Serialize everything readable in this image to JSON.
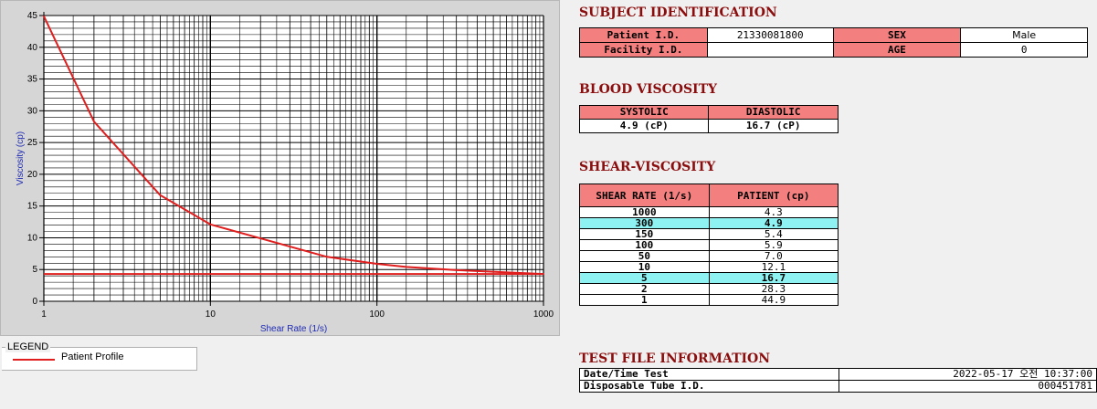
{
  "chart_data": {
    "type": "line",
    "xscale": "log",
    "xlim": [
      1,
      1000
    ],
    "ylim": [
      0,
      45
    ],
    "xlabel": "Shear Rate (1/s)",
    "ylabel": "Viscosity (cp)",
    "x_ticks": [
      "1",
      "10",
      "100",
      "1000"
    ],
    "y_ticks": [
      "0",
      "5",
      "10",
      "15",
      "20",
      "25",
      "30",
      "35",
      "40",
      "45"
    ],
    "grid": true,
    "legend_title": "LEGEND",
    "series": [
      {
        "name": "Patient Profile",
        "color": "#e01e1e",
        "x": [
          1,
          2,
          5,
          10,
          50,
          100,
          150,
          300,
          1000
        ],
        "y": [
          44.9,
          28.3,
          16.7,
          12.1,
          7.0,
          5.9,
          5.4,
          4.9,
          4.3
        ]
      }
    ],
    "reference_line": {
      "y": 4.3,
      "color": "#e01e1e"
    }
  },
  "subject": {
    "title": "SUBJECT IDENTIFICATION",
    "patient_id_label": "Patient I.D.",
    "patient_id": "21330081800",
    "sex_label": "SEX",
    "sex": "Male",
    "facility_id_label": "Facility I.D.",
    "facility_id": "",
    "age_label": "AGE",
    "age": "0"
  },
  "blood_viscosity": {
    "title": "BLOOD VISCOSITY",
    "systolic_label": "SYSTOLIC",
    "diastolic_label": "DIASTOLIC",
    "systolic": "4.9 (cP)",
    "diastolic": "16.7 (cP)"
  },
  "shear_viscosity": {
    "title": "SHEAR-VISCOSITY",
    "col_rate": "SHEAR RATE (1/s)",
    "col_patient": "PATIENT (cp)",
    "rows": [
      {
        "rate": "1000",
        "value": "4.3",
        "hl": false
      },
      {
        "rate": "300",
        "value": "4.9",
        "hl": true
      },
      {
        "rate": "150",
        "value": "5.4",
        "hl": false
      },
      {
        "rate": "100",
        "value": "5.9",
        "hl": false
      },
      {
        "rate": "50",
        "value": "7.0",
        "hl": false
      },
      {
        "rate": "10",
        "value": "12.1",
        "hl": false
      },
      {
        "rate": "5",
        "value": "16.7",
        "hl": true
      },
      {
        "rate": "2",
        "value": "28.3",
        "hl": false
      },
      {
        "rate": "1",
        "value": "44.9",
        "hl": false
      }
    ]
  },
  "test_file": {
    "title": "TEST FILE INFORMATION",
    "datetime_label": "Date/Time Test",
    "datetime": "2022-05-17  오전 10:37:00",
    "tube_label": "Disposable Tube I.D.",
    "tube": "000451781"
  }
}
